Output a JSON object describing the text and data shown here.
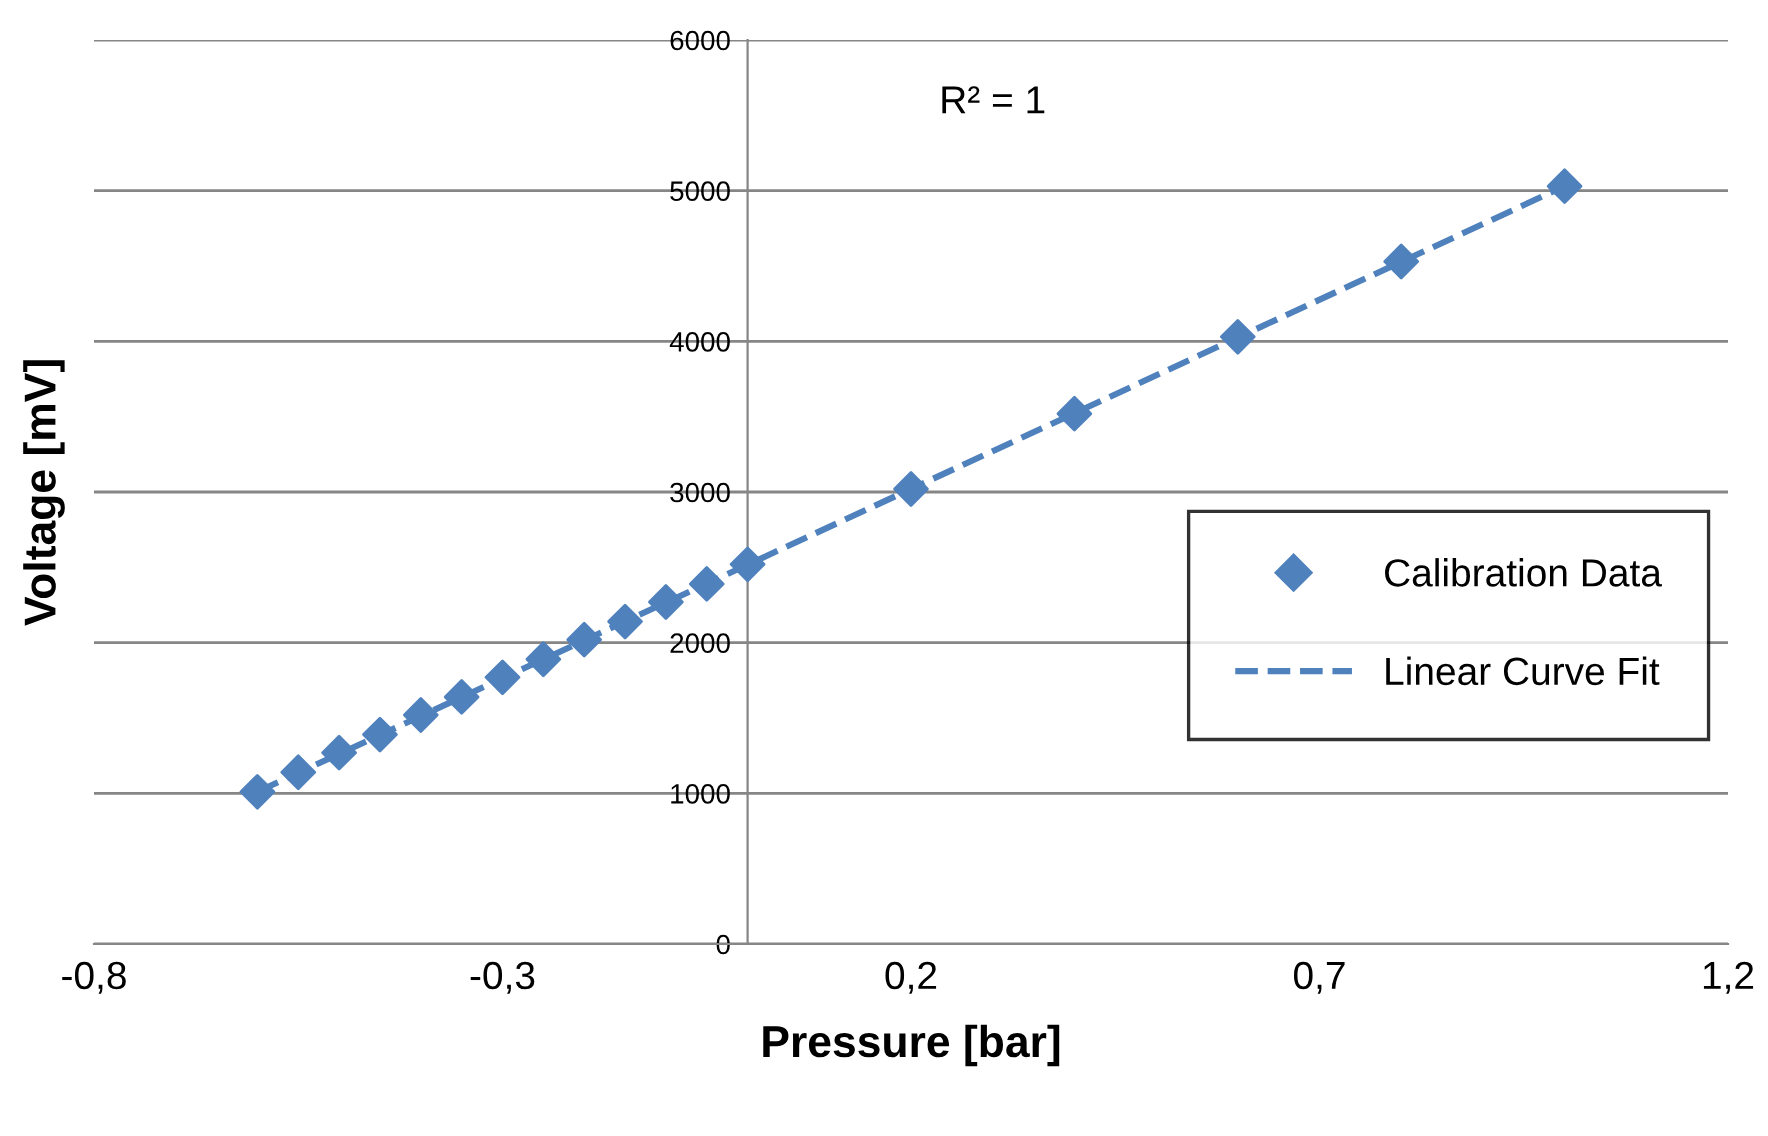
{
  "chart_data": {
    "type": "scatter",
    "xlabel": "Pressure [bar]",
    "ylabel": "Voltage [mV]",
    "annotations": [
      "R² = 1"
    ],
    "xlim": [
      -0.8,
      1.2
    ],
    "ylim": [
      0,
      6000
    ],
    "xticks": [
      {
        "value": -0.8,
        "label": "-0,8"
      },
      {
        "value": -0.3,
        "label": "-0,3"
      },
      {
        "value": 0.2,
        "label": "0,2"
      },
      {
        "value": 0.7,
        "label": "0,7"
      },
      {
        "value": 1.2,
        "label": "1,2"
      }
    ],
    "yticks": [
      0,
      1000,
      2000,
      3000,
      4000,
      5000,
      6000
    ],
    "grid": "y",
    "legend": "right",
    "series": [
      {
        "name": "Calibration Data",
        "marker": "diamond",
        "color": "#4f81bd",
        "x": [
          -0.6,
          -0.55,
          -0.5,
          -0.45,
          -0.4,
          -0.35,
          -0.3,
          -0.25,
          -0.2,
          -0.15,
          -0.1,
          -0.05,
          0,
          0.2,
          0.4,
          0.6,
          0.8,
          1.0
        ],
        "values": [
          1010,
          1140,
          1270,
          1390,
          1520,
          1640,
          1770,
          1890,
          2020,
          2140,
          2270,
          2390,
          2520,
          3020,
          3520,
          4030,
          4530,
          5030
        ]
      },
      {
        "name": "Linear Curve Fit",
        "type": "line",
        "line_style": "dashed",
        "marker": "none",
        "color": "#4f81bd",
        "x": [
          -0.6,
          1.0
        ],
        "values": [
          1010,
          5030
        ]
      }
    ]
  }
}
